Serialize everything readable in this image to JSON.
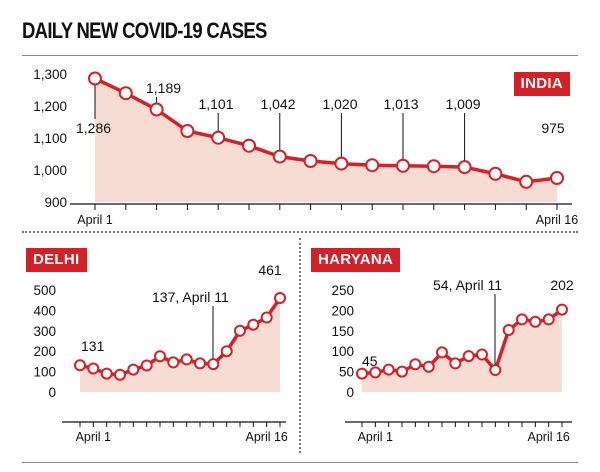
{
  "page": {
    "title": "DAILY NEW COVID-19 CASES"
  },
  "chart_data": [
    {
      "id": "india",
      "type": "area",
      "title": "INDIA",
      "x": [
        "April 1",
        "April 2",
        "April 3",
        "April 4",
        "April 5",
        "April 6",
        "April 7",
        "April 8",
        "April 9",
        "April 10",
        "April 11",
        "April 12",
        "April 13",
        "April 14",
        "April 15",
        "April 16"
      ],
      "values": [
        1286,
        1240,
        1189,
        1122,
        1101,
        1076,
        1042,
        1028,
        1020,
        1015,
        1013,
        1012,
        1009,
        988,
        963,
        975
      ],
      "data_labels": [
        {
          "index": 0,
          "text": "1,286"
        },
        {
          "index": 2,
          "text": "1,189"
        },
        {
          "index": 4,
          "text": "1,101"
        },
        {
          "index": 6,
          "text": "1,042"
        },
        {
          "index": 8,
          "text": "1,020"
        },
        {
          "index": 10,
          "text": "1,013"
        },
        {
          "index": 12,
          "text": "1,009"
        },
        {
          "index": 15,
          "text": "975"
        }
      ],
      "ylim": [
        900,
        1300
      ],
      "yticks": [
        900,
        1000,
        1100,
        1200,
        1300
      ],
      "ytick_labels": [
        "900",
        "1,000",
        "1,100",
        "1,200",
        "1,300"
      ],
      "xtick_labels": [
        {
          "index": 0,
          "text": "April 1"
        },
        {
          "index": 15,
          "text": "April 16"
        }
      ],
      "line_color": "#d62027",
      "fill_color": "#f6dcd3",
      "legend": "none"
    },
    {
      "id": "delhi",
      "type": "area",
      "title": "DELHI",
      "x": [
        "April 1",
        "April 2",
        "April 3",
        "April 4",
        "April 5",
        "April 6",
        "April 7",
        "April 8",
        "April 9",
        "April 10",
        "April 11",
        "April 12",
        "April 13",
        "April 14",
        "April 15",
        "April 16"
      ],
      "values": [
        131,
        115,
        90,
        85,
        110,
        130,
        175,
        145,
        160,
        140,
        137,
        200,
        300,
        330,
        365,
        461
      ],
      "data_labels": [
        {
          "index": 0,
          "text": "131"
        },
        {
          "index": 10,
          "text": "137, April 11"
        },
        {
          "index": 15,
          "text": "461"
        }
      ],
      "ylim": [
        0,
        500
      ],
      "yticks": [
        0,
        100,
        200,
        300,
        400,
        500
      ],
      "ytick_labels": [
        "0",
        "100",
        "200",
        "300",
        "400",
        "500"
      ],
      "xtick_labels": [
        {
          "index": 1,
          "text": "April 1"
        },
        {
          "index": 14,
          "text": "April 16"
        }
      ],
      "line_color": "#d62027",
      "fill_color": "#f6dcd3",
      "legend": "none"
    },
    {
      "id": "haryana",
      "type": "area",
      "title": "HARYANA",
      "x": [
        "April 1",
        "April 2",
        "April 3",
        "April 4",
        "April 5",
        "April 6",
        "April 7",
        "April 8",
        "April 9",
        "April 10",
        "April 11",
        "April 12",
        "April 13",
        "April 14",
        "April 15",
        "April 16"
      ],
      "values": [
        45,
        48,
        55,
        50,
        68,
        62,
        97,
        70,
        88,
        92,
        54,
        152,
        178,
        172,
        178,
        202
      ],
      "data_labels": [
        {
          "index": 0,
          "text": "45"
        },
        {
          "index": 10,
          "text": "54, April 11"
        },
        {
          "index": 15,
          "text": "202"
        }
      ],
      "ylim": [
        0,
        250
      ],
      "yticks": [
        0,
        50,
        100,
        150,
        200,
        250
      ],
      "ytick_labels": [
        "0",
        "50",
        "100",
        "150",
        "200",
        "250"
      ],
      "xtick_labels": [
        {
          "index": 1,
          "text": "April 1"
        },
        {
          "index": 14,
          "text": "April 16"
        }
      ],
      "line_color": "#d62027",
      "fill_color": "#f6dcd3",
      "legend": "none"
    }
  ]
}
